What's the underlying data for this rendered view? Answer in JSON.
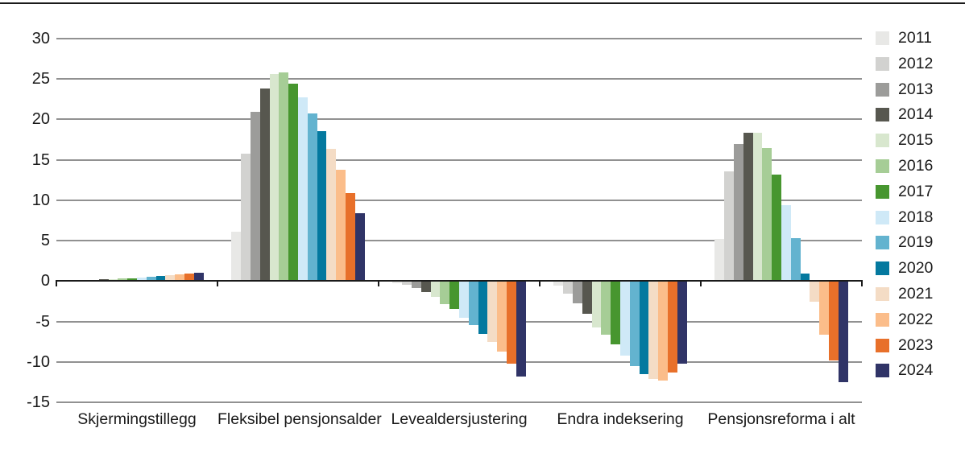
{
  "chart_data": {
    "type": "bar",
    "title": "",
    "xlabel": "",
    "ylabel": "",
    "categories": [
      "Skjermingstillegg",
      "Fleksibel pensjonsalder",
      "Levealdersjustering",
      "Endra indeksering",
      "Pensjonsreforma i alt"
    ],
    "series": [
      {
        "name": "2011",
        "color": "#e8e8e6",
        "values": [
          0.05,
          6.1,
          -0.3,
          -0.6,
          5.2
        ]
      },
      {
        "name": "2012",
        "color": "#d2d2d0",
        "values": [
          0.1,
          15.8,
          -0.5,
          -1.6,
          13.6
        ]
      },
      {
        "name": "2013",
        "color": "#9c9c9a",
        "values": [
          0.15,
          20.9,
          -0.9,
          -2.8,
          17.0
        ]
      },
      {
        "name": "2014",
        "color": "#57574f",
        "values": [
          0.2,
          23.8,
          -1.4,
          -4.0,
          18.4
        ]
      },
      {
        "name": "2015",
        "color": "#d8e7ce",
        "values": [
          0.25,
          25.6,
          -2.0,
          -5.7,
          18.4
        ]
      },
      {
        "name": "2016",
        "color": "#a6cd96",
        "values": [
          0.3,
          25.8,
          -2.9,
          -6.6,
          16.5
        ]
      },
      {
        "name": "2017",
        "color": "#47962f",
        "values": [
          0.35,
          24.4,
          -3.5,
          -7.8,
          13.2
        ]
      },
      {
        "name": "2018",
        "color": "#cfe9f7",
        "values": [
          0.4,
          22.7,
          -4.5,
          -9.2,
          9.4
        ]
      },
      {
        "name": "2019",
        "color": "#63b3cf",
        "values": [
          0.5,
          20.7,
          -5.4,
          -10.5,
          5.3
        ]
      },
      {
        "name": "2020",
        "color": "#04799f",
        "values": [
          0.6,
          18.6,
          -6.5,
          -11.5,
          0.9
        ]
      },
      {
        "name": "2021",
        "color": "#f4dcc5",
        "values": [
          0.7,
          16.4,
          -7.5,
          -12.1,
          -2.6
        ]
      },
      {
        "name": "2022",
        "color": "#fbbd8a",
        "values": [
          0.8,
          13.8,
          -8.7,
          -12.3,
          -6.6
        ]
      },
      {
        "name": "2023",
        "color": "#e8702a",
        "values": [
          0.9,
          10.9,
          -10.2,
          -11.3,
          -9.8
        ]
      },
      {
        "name": "2024",
        "color": "#303467",
        "values": [
          1.0,
          8.4,
          -11.8,
          -10.2,
          -12.5
        ]
      }
    ],
    "yticks": [
      30,
      25,
      20,
      15,
      10,
      5,
      0,
      -5,
      -10,
      -15
    ],
    "ylim": [
      -15,
      30
    ],
    "grid": "horizontal",
    "gridline_color": "#919191",
    "zero_line_color": "#1a1a1a",
    "legend_position": "right"
  }
}
